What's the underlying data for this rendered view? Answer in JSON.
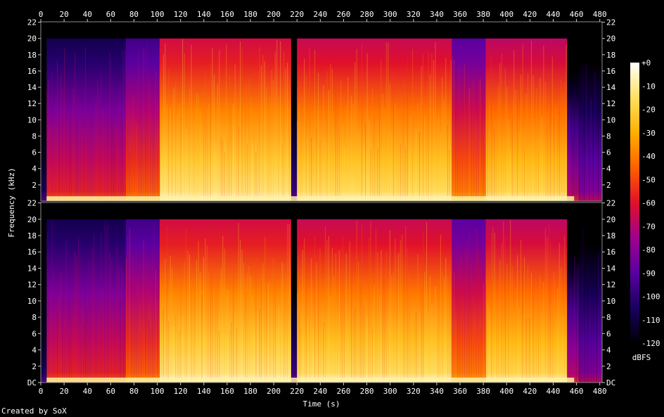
{
  "chart_data": {
    "type": "heatmap",
    "xlabel": "Time (s)",
    "ylabel": "Frequency (kHz)",
    "x_ticks": [
      0,
      20,
      40,
      60,
      80,
      100,
      120,
      140,
      160,
      180,
      200,
      220,
      240,
      260,
      280,
      300,
      320,
      340,
      360,
      380,
      400,
      420,
      440,
      460,
      480
    ],
    "xlim": [
      0,
      482
    ],
    "channels": [
      {
        "y_ticks": [
          "2",
          "4",
          "6",
          "8",
          "10",
          "12",
          "14",
          "16",
          "18",
          "20",
          "22"
        ]
      },
      {
        "y_ticks": [
          "DC",
          "2",
          "4",
          "6",
          "8",
          "10",
          "12",
          "14",
          "16",
          "18",
          "20",
          "22"
        ]
      }
    ],
    "ylim_khz": [
      0,
      22.05
    ],
    "colorbar": {
      "unit": "dBFS",
      "range": [
        -120,
        0
      ],
      "ticks": [
        "+0",
        "-10",
        "-20",
        "-30",
        "-40",
        "-50",
        "-60",
        "-70",
        "-80",
        "-90",
        "-100",
        "-110",
        "-120"
      ]
    },
    "segments": [
      {
        "t": [
          0,
          5
        ],
        "level": 0.05,
        "top_khz": 20
      },
      {
        "t": [
          5,
          73
        ],
        "level": 0.45,
        "top_khz": 20
      },
      {
        "t": [
          73,
          102
        ],
        "level": 0.55,
        "top_khz": 20
      },
      {
        "t": [
          102,
          215
        ],
        "level": 0.82,
        "top_khz": 20
      },
      {
        "t": [
          215,
          220
        ],
        "level": 0.12,
        "top_khz": 20
      },
      {
        "t": [
          220,
          353
        ],
        "level": 0.8,
        "top_khz": 20
      },
      {
        "t": [
          353,
          382
        ],
        "level": 0.6,
        "top_khz": 20
      },
      {
        "t": [
          382,
          452
        ],
        "level": 0.78,
        "top_khz": 20
      },
      {
        "t": [
          452,
          462
        ],
        "level": 0.35,
        "top_khz": 16
      },
      {
        "t": [
          462,
          482
        ],
        "level": 0.25,
        "top_khz": 20
      }
    ],
    "colors": [
      "#000000",
      "#190060",
      "#5a00a0",
      "#a00090",
      "#e0102a",
      "#ff6000",
      "#ffb000",
      "#ffe060",
      "#ffffff"
    ]
  },
  "credit": "Created by SoX"
}
